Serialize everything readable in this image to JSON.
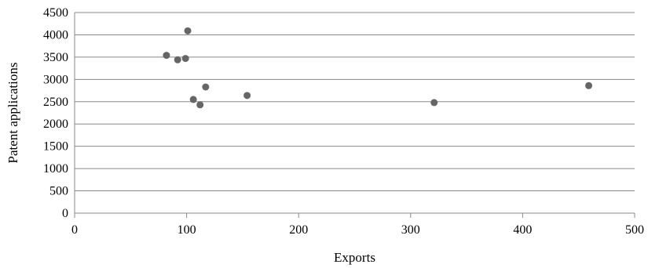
{
  "chart_data": {
    "type": "scatter",
    "title": "",
    "xlabel": "Exports",
    "ylabel": "Patent applications",
    "xlim": [
      0,
      500
    ],
    "ylim": [
      0,
      4500
    ],
    "x_ticks": [
      0,
      100,
      200,
      300,
      400,
      500
    ],
    "y_ticks": [
      0,
      500,
      1000,
      1500,
      2000,
      2500,
      3000,
      3500,
      4000,
      4500
    ],
    "grid": "horizontal",
    "legend": "none",
    "marker_color": "#666666",
    "gridline_color": "#888888",
    "points": [
      {
        "x": 82,
        "y": 3540
      },
      {
        "x": 92,
        "y": 3440
      },
      {
        "x": 99,
        "y": 3470
      },
      {
        "x": 101,
        "y": 4090
      },
      {
        "x": 106,
        "y": 2550
      },
      {
        "x": 112,
        "y": 2430
      },
      {
        "x": 117,
        "y": 2830
      },
      {
        "x": 154,
        "y": 2640
      },
      {
        "x": 321,
        "y": 2480
      },
      {
        "x": 459,
        "y": 2860
      }
    ]
  }
}
